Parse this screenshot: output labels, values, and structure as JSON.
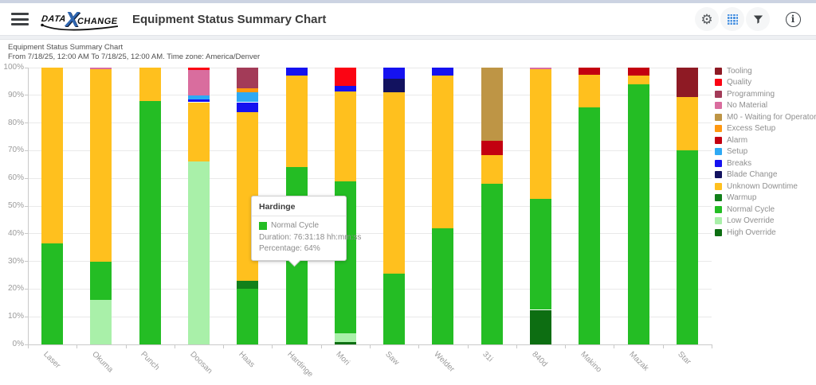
{
  "header": {
    "title": "Equipment Status Summary Chart",
    "logo": {
      "data": "DATA",
      "x": "X",
      "change": "CHANGE"
    },
    "icons": [
      "menu-icon",
      "settings-icon",
      "grid-icon",
      "filter-icon",
      "info-icon"
    ],
    "accent_blue": "#4f94e0"
  },
  "chart_header": {
    "title": "Equipment Status Summary Chart",
    "subtitle": "From 7/18/25, 12:00 AM To 7/18/25, 12:00 AM. Time zone: America/Denver"
  },
  "tooltip": {
    "title": "Hardinge",
    "item_label": "Normal Cycle",
    "duration": "Duration: 76:31:18 hh:mm:ss",
    "percentage": "Percentage: 64%",
    "swatch_color": "#24BD24"
  },
  "chart_data": {
    "type": "bar",
    "stacked": true,
    "ylim": [
      0,
      100
    ],
    "grid": true,
    "legend_position": "right",
    "yticks": [
      "0%",
      "10%",
      "20%",
      "30%",
      "40%",
      "50%",
      "60%",
      "70%",
      "80%",
      "90%",
      "100%"
    ],
    "categories": [
      "Laser",
      "Okuma",
      "Punch",
      "Doosan",
      "Haas",
      "Hardinge",
      "Mori",
      "Saw",
      "Welder",
      "31i",
      "840d",
      "Makino",
      "Mazak",
      "Star"
    ],
    "series": [
      {
        "name": "High Override",
        "color": "#0D6E12",
        "values": [
          0,
          0,
          0,
          0,
          0,
          0,
          1,
          0,
          0,
          0,
          12.5,
          0,
          0,
          0
        ]
      },
      {
        "name": "Low Override",
        "color": "#A9F0A9",
        "values": [
          0,
          16,
          0,
          66,
          0,
          0,
          3,
          0,
          0,
          0,
          0,
          0,
          0,
          0
        ]
      },
      {
        "name": "Normal Cycle",
        "color": "#24BD24",
        "values": [
          36.5,
          14,
          88,
          0,
          20,
          64,
          55,
          25.5,
          42,
          58,
          40,
          85.5,
          94,
          70
        ]
      },
      {
        "name": "Warmup",
        "color": "#12801A",
        "values": [
          0,
          0,
          0,
          0,
          3,
          0,
          0,
          0,
          0,
          0,
          0,
          0,
          0,
          0
        ]
      },
      {
        "name": "Unknown Downtime",
        "color": "#FFC01E",
        "values": [
          63.5,
          69.5,
          12,
          21.5,
          61,
          33,
          32.5,
          65.5,
          55,
          10.5,
          47,
          12,
          3,
          19.5
        ]
      },
      {
        "name": "Blade Change",
        "color": "#12125F",
        "values": [
          0,
          0,
          0,
          0,
          0,
          0,
          0,
          5,
          0,
          0,
          0,
          0,
          0,
          0
        ]
      },
      {
        "name": "Breaks",
        "color": "#1512F0",
        "values": [
          0,
          0,
          0,
          1,
          3.5,
          3,
          2,
          4,
          3,
          0,
          0,
          0,
          0,
          0
        ]
      },
      {
        "name": "Setup",
        "color": "#2EA9F4",
        "values": [
          0,
          0,
          0,
          1.5,
          3.5,
          0,
          0,
          0,
          0,
          0,
          0,
          0,
          0,
          0
        ]
      },
      {
        "name": "Alarm",
        "color": "#C30010",
        "values": [
          0,
          0,
          0,
          0,
          0,
          0,
          0,
          0,
          0,
          5,
          0,
          2.5,
          3,
          0
        ]
      },
      {
        "name": "Excess Setup",
        "color": "#FF9810",
        "values": [
          0,
          0,
          0,
          0,
          1.5,
          0,
          0,
          0,
          0,
          0,
          0,
          0,
          0,
          0
        ]
      },
      {
        "name": "M0 - Waiting for Operator",
        "color": "#BE9545",
        "values": [
          0,
          0,
          0,
          0,
          0,
          0,
          0,
          0,
          0,
          26.5,
          0,
          0,
          0,
          0
        ]
      },
      {
        "name": "No Material",
        "color": "#D96D9E",
        "values": [
          0,
          0.5,
          0,
          9,
          0,
          0,
          0,
          0,
          0,
          0,
          0.5,
          0,
          0,
          0
        ]
      },
      {
        "name": "Programming",
        "color": "#A33B58",
        "values": [
          0,
          0,
          0,
          0,
          7.5,
          0,
          0,
          0,
          0,
          0,
          0,
          0,
          0,
          0
        ]
      },
      {
        "name": "Quality",
        "color": "#FB0413",
        "values": [
          0,
          0,
          0,
          1,
          0,
          0,
          6.5,
          0,
          0,
          0,
          0,
          0,
          0,
          0
        ]
      },
      {
        "name": "Tooling",
        "color": "#8E1A24",
        "values": [
          0,
          0,
          0,
          0,
          0,
          0,
          0,
          0,
          0,
          0,
          0,
          0,
          0,
          10.5
        ]
      }
    ],
    "highlight": {
      "category": "Hardinge",
      "category_index": 5,
      "series": "Normal Cycle",
      "percentage": 64,
      "duration": "76:31:18"
    }
  }
}
